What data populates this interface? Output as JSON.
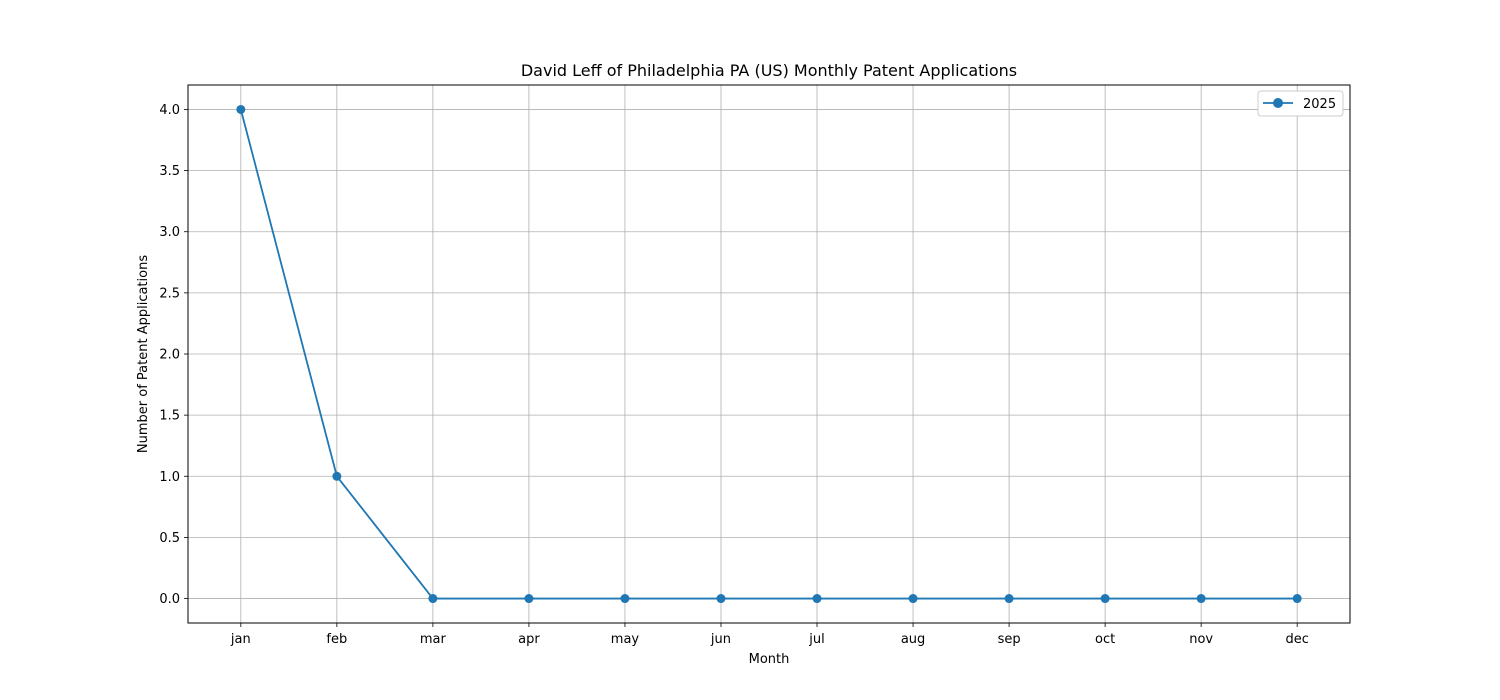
{
  "chart_data": {
    "type": "line",
    "title": "David Leff of Philadelphia PA (US) Monthly Patent Applications",
    "xlabel": "Month",
    "ylabel": "Number of Patent Applications",
    "categories": [
      "jan",
      "feb",
      "mar",
      "apr",
      "may",
      "jun",
      "jul",
      "aug",
      "sep",
      "oct",
      "nov",
      "dec"
    ],
    "series": [
      {
        "name": "2025",
        "values": [
          4,
          1,
          0,
          0,
          0,
          0,
          0,
          0,
          0,
          0,
          0,
          0
        ],
        "color": "#1f77b4"
      }
    ],
    "ylim": [
      -0.2,
      4.2
    ],
    "yticks": [
      "0.0",
      "0.5",
      "1.0",
      "1.5",
      "2.0",
      "2.5",
      "3.0",
      "3.5",
      "4.0"
    ],
    "grid": true,
    "legend_position": "top-right"
  }
}
